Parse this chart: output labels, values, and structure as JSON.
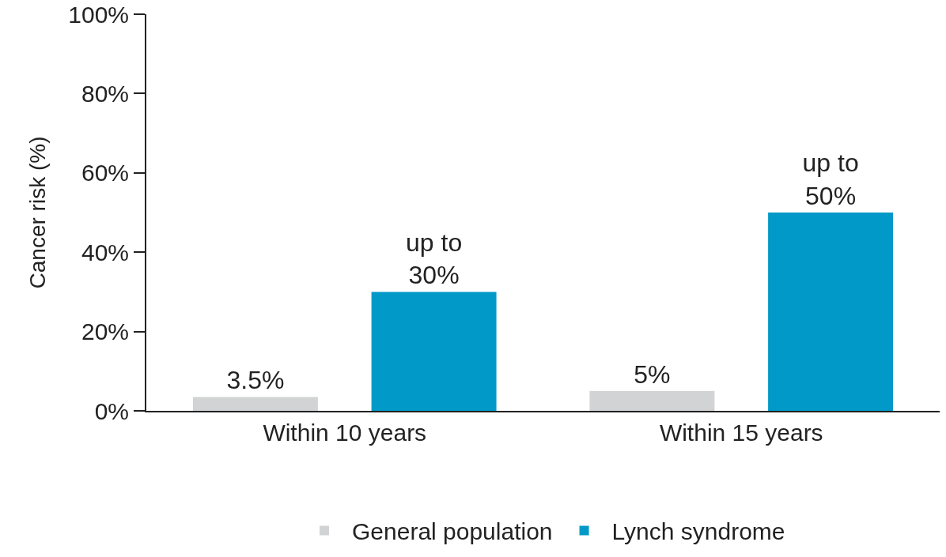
{
  "chart_data": {
    "type": "bar",
    "ylabel": "Cancer risk (%)",
    "categories": [
      "Within 10 years",
      "Within 15 years"
    ],
    "series": [
      {
        "name": "General population",
        "color": "#d1d3d4",
        "values": [
          3.5,
          5
        ],
        "value_labels": [
          "3.5%",
          "5%"
        ]
      },
      {
        "name": "Lynch syndrome",
        "color": "#0099c8",
        "values": [
          30,
          50
        ],
        "value_labels": [
          "up to\n30%",
          "up to\n50%"
        ]
      }
    ],
    "ylim": [
      0,
      100
    ],
    "yticks": [
      {
        "value": 0,
        "label": "0%"
      },
      {
        "value": 20,
        "label": "20%"
      },
      {
        "value": 40,
        "label": "40%"
      },
      {
        "value": 60,
        "label": "60%"
      },
      {
        "value": 80,
        "label": "80%"
      },
      {
        "value": 100,
        "label": "100%"
      }
    ],
    "grid": false,
    "legend": "bottom"
  }
}
